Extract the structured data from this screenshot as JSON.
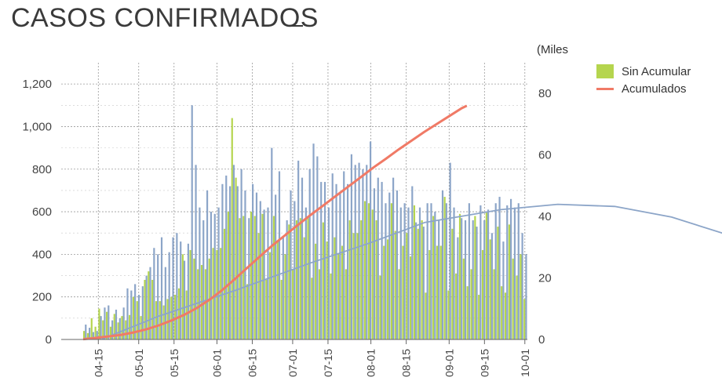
{
  "title": "CASOS CONFIRMADOS",
  "chart_data": {
    "type": "bar",
    "x_dates_comment": "",
    "x": [],
    "x_start": "2020-04-09",
    "x_ticks": [
      "04-15",
      "05-01",
      "05-15",
      "06-01",
      "06-15",
      "07-01",
      "07-15",
      "08-01",
      "08-15",
      "09-01",
      "09-15",
      "10-01"
    ],
    "y_left": {
      "min": 0,
      "max": 1300,
      "ticks": [
        0,
        200,
        400,
        600,
        800,
        "1,000",
        "1,200"
      ],
      "tick_values": [
        0,
        200,
        400,
        600,
        800,
        1000,
        1200
      ]
    },
    "y_right": {
      "label": "(Miles",
      "min": 0,
      "max": 90,
      "ticks": [
        0,
        20,
        40,
        60,
        80
      ]
    },
    "grid": true,
    "legend_position": "top-right",
    "series": [
      {
        "name": "Sin Acumular",
        "kind": "bar",
        "color": "#b5d54e"
      },
      {
        "name": "Acumulados",
        "kind": "line",
        "color": "#f07a66",
        "axis": "right"
      }
    ],
    "bars_blue_color": "#8ca5c8",
    "bars_pairs": [
      [
        40,
        70
      ],
      [
        30,
        55
      ],
      [
        100,
        35
      ],
      [
        60,
        40
      ],
      [
        145,
        110
      ],
      [
        90,
        150
      ],
      [
        130,
        160
      ],
      [
        60,
        90
      ],
      [
        120,
        140
      ],
      [
        80,
        100
      ],
      [
        110,
        150
      ],
      [
        90,
        240
      ],
      [
        115,
        230
      ],
      [
        200,
        260
      ],
      [
        180,
        210
      ],
      [
        110,
        250
      ],
      [
        280,
        300
      ],
      [
        320,
        340
      ],
      [
        280,
        430
      ],
      [
        180,
        400
      ],
      [
        180,
        480
      ],
      [
        160,
        340
      ],
      [
        190,
        410
      ],
      [
        200,
        480
      ],
      [
        210,
        500
      ],
      [
        240,
        460
      ],
      [
        400,
        370
      ],
      [
        230,
        450
      ],
      [
        420,
        1100
      ],
      [
        380,
        820
      ],
      [
        330,
        620
      ],
      [
        350,
        560
      ],
      [
        330,
        700
      ],
      [
        380,
        600
      ],
      [
        430,
        590
      ],
      [
        420,
        620
      ],
      [
        430,
        730
      ],
      [
        520,
        770
      ],
      [
        600,
        720
      ],
      [
        1040,
        820
      ],
      [
        760,
        720
      ],
      [
        570,
        800
      ],
      [
        580,
        700
      ],
      [
        260,
        570
      ],
      [
        600,
        730
      ],
      [
        580,
        690
      ],
      [
        500,
        650
      ],
      [
        590,
        610
      ],
      [
        280,
        620
      ],
      [
        410,
        900
      ],
      [
        580,
        680
      ],
      [
        460,
        790
      ],
      [
        280,
        480
      ],
      [
        400,
        560
      ],
      [
        540,
        700
      ],
      [
        330,
        650
      ],
      [
        560,
        840
      ],
      [
        570,
        760
      ],
      [
        480,
        620
      ],
      [
        570,
        800
      ],
      [
        290,
        920
      ],
      [
        450,
        860
      ],
      [
        330,
        740
      ],
      [
        550,
        740
      ],
      [
        460,
        620
      ],
      [
        310,
        780
      ],
      [
        480,
        730
      ],
      [
        400,
        690
      ],
      [
        440,
        790
      ],
      [
        330,
        730
      ],
      [
        560,
        870
      ],
      [
        500,
        820
      ],
      [
        500,
        830
      ],
      [
        560,
        800
      ],
      [
        650,
        820
      ],
      [
        640,
        930
      ],
      [
        610,
        710
      ],
      [
        560,
        760
      ],
      [
        300,
        740
      ],
      [
        440,
        640
      ],
      [
        470,
        690
      ],
      [
        640,
        760
      ],
      [
        510,
        700
      ],
      [
        330,
        620
      ],
      [
        440,
        640
      ],
      [
        500,
        620
      ],
      [
        390,
        720
      ],
      [
        630,
        550
      ],
      [
        520,
        620
      ],
      [
        560,
        530
      ],
      [
        220,
        640
      ],
      [
        420,
        640
      ],
      [
        580,
        600
      ],
      [
        440,
        560
      ],
      [
        440,
        700
      ],
      [
        670,
        640
      ],
      [
        230,
        830
      ],
      [
        520,
        620
      ],
      [
        310,
        480
      ],
      [
        590,
        570
      ],
      [
        380,
        560
      ],
      [
        250,
        640
      ],
      [
        330,
        560
      ],
      [
        580,
        530
      ],
      [
        210,
        630
      ],
      [
        420,
        560
      ],
      [
        600,
        610
      ],
      [
        470,
        500
      ],
      [
        330,
        640
      ],
      [
        530,
        670
      ],
      [
        250,
        460
      ],
      [
        220,
        630
      ],
      [
        540,
        660
      ],
      [
        380,
        620
      ],
      [
        300,
        640
      ],
      [
        400,
        500
      ],
      [
        190,
        400
      ]
    ],
    "acumulados_points": [
      [
        0,
        0.1
      ],
      [
        5,
        0.5
      ],
      [
        10,
        1.0
      ],
      [
        15,
        1.5
      ],
      [
        20,
        2.3
      ],
      [
        25,
        3.3
      ],
      [
        30,
        4.6
      ],
      [
        35,
        6.2
      ],
      [
        40,
        8.0
      ],
      [
        45,
        10.2
      ],
      [
        50,
        12.9
      ],
      [
        55,
        16.0
      ],
      [
        60,
        19.6
      ],
      [
        65,
        23.3
      ],
      [
        70,
        27.0
      ],
      [
        75,
        30.6
      ],
      [
        80,
        33.9
      ],
      [
        85,
        37.2
      ],
      [
        90,
        40.4
      ],
      [
        95,
        43.5
      ],
      [
        100,
        46.6
      ],
      [
        105,
        49.7
      ],
      [
        110,
        52.8
      ],
      [
        115,
        55.9
      ],
      [
        120,
        58.8
      ],
      [
        125,
        61.8
      ],
      [
        130,
        64.6
      ],
      [
        135,
        67.4
      ],
      [
        140,
        70.0
      ],
      [
        145,
        72.6
      ],
      [
        150,
        75.2
      ],
      [
        152,
        76.0
      ]
    ],
    "trend_points": [
      [
        5,
        2
      ],
      [
        20,
        110
      ],
      [
        40,
        230
      ],
      [
        60,
        360
      ],
      [
        75,
        450
      ],
      [
        90,
        550
      ],
      [
        110,
        610
      ],
      [
        125,
        635
      ],
      [
        140,
        625
      ],
      [
        155,
        575
      ],
      [
        170,
        490
      ],
      [
        185,
        380
      ],
      [
        200,
        250
      ]
    ]
  }
}
